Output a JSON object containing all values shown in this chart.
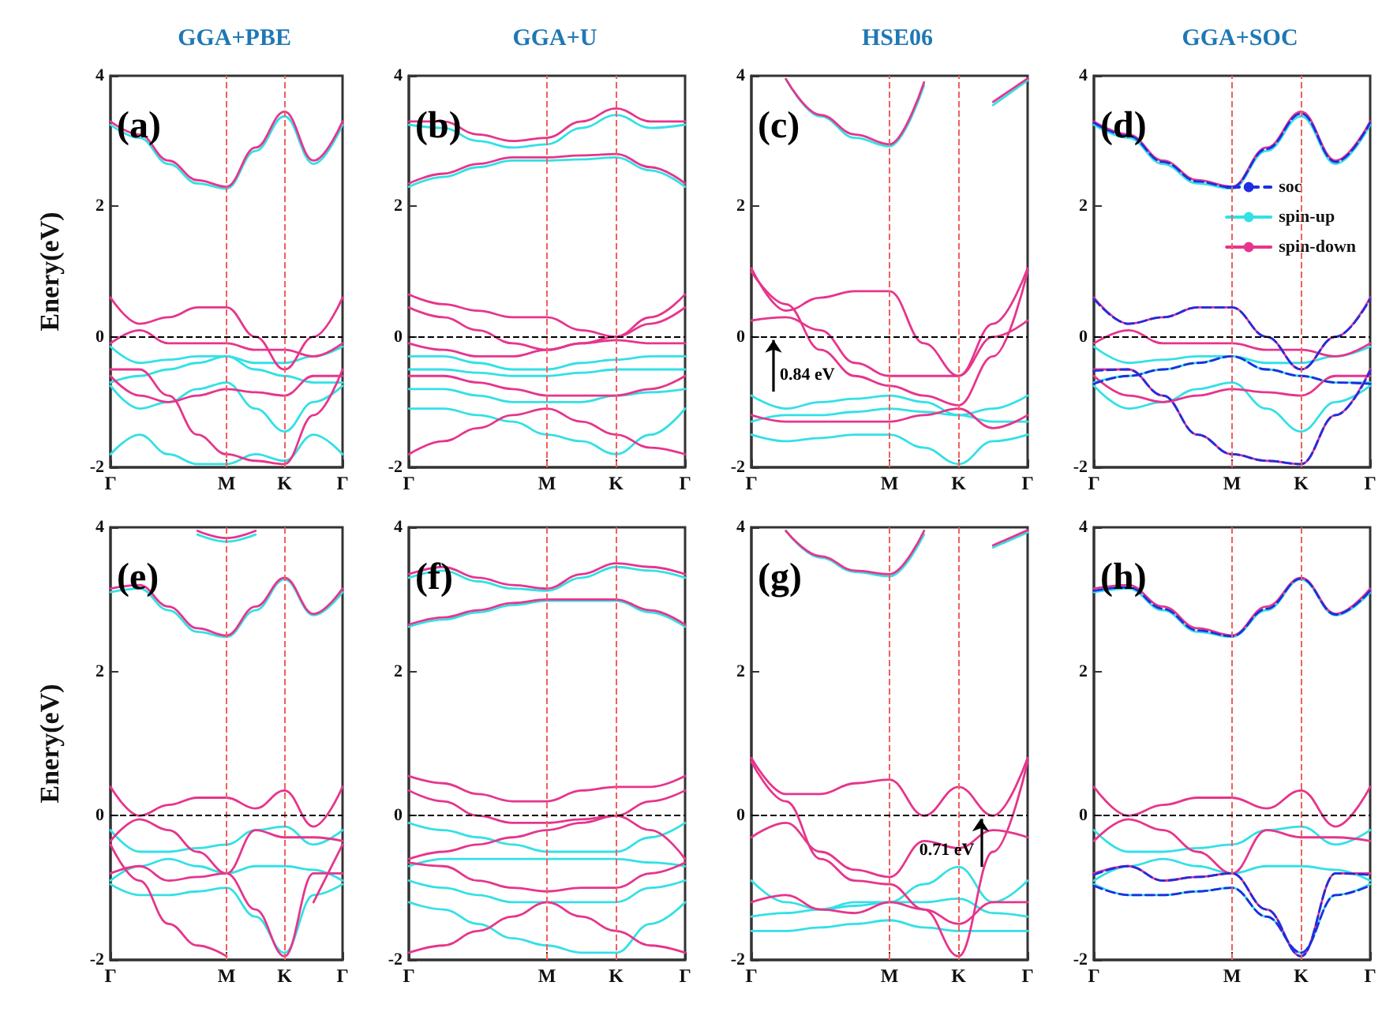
{
  "chart_data": [
    {
      "type": "line",
      "title": "GGA+PBE",
      "ylabel": "Enery(eV)",
      "annotations": [
        "(a)"
      ],
      "categories": [
        "Γ",
        null,
        null,
        null,
        "M",
        null,
        "K",
        null,
        "Γ"
      ],
      "ylim": [
        -2,
        4
      ],
      "yticks": [
        -2,
        0,
        2,
        4
      ],
      "marker": "none",
      "line_style": "solid",
      "ref_lines": [
        {
          "axis": "x",
          "value": "M",
          "color": "#f06060",
          "line_style": "dashed"
        },
        {
          "axis": "x",
          "value": "K",
          "color": "#f06060",
          "line_style": "dashed"
        },
        {
          "axis": "y",
          "value": 0,
          "color": "#000000",
          "line_style": "dashed"
        }
      ],
      "series": [
        {
          "color": "#33e0e6",
          "values": [
            3.25,
            3.05,
            2.65,
            2.35,
            2.27,
            2.85,
            3.38,
            2.65,
            3.25
          ]
        },
        {
          "color": "#33e0e6",
          "values": [
            -0.15,
            -0.4,
            -0.35,
            -0.3,
            -0.3,
            -0.4,
            -0.4,
            -0.3,
            -0.15
          ]
        },
        {
          "color": "#33e0e6",
          "values": [
            -0.7,
            -0.6,
            -0.5,
            -0.4,
            -0.3,
            -0.5,
            -0.6,
            -0.7,
            -0.7
          ]
        },
        {
          "color": "#33e0e6",
          "values": [
            -0.75,
            -1.1,
            -1.0,
            -0.8,
            -0.7,
            -1.1,
            -1.45,
            -1.0,
            -0.75
          ]
        },
        {
          "color": "#33e0e6",
          "values": [
            -1.8,
            -1.5,
            -1.8,
            -1.95,
            -1.95,
            -1.8,
            -1.9,
            -1.5,
            -1.8
          ]
        },
        {
          "color": "#e6358c",
          "values": [
            3.3,
            3.1,
            2.7,
            2.4,
            2.3,
            2.9,
            3.45,
            2.7,
            3.3
          ]
        },
        {
          "color": "#e6358c",
          "values": [
            0.6,
            0.2,
            0.3,
            0.45,
            0.45,
            0,
            -0.5,
            0,
            0.6
          ]
        },
        {
          "color": "#e6358c",
          "values": [
            -0.1,
            0.1,
            -0.1,
            -0.1,
            -0.1,
            -0.2,
            -0.2,
            -0.3,
            -0.1
          ]
        },
        {
          "color": "#e6358c",
          "values": [
            -0.6,
            -0.9,
            -1.0,
            -0.9,
            -0.8,
            -0.85,
            -0.9,
            -0.6,
            -0.6
          ]
        },
        {
          "color": "#e6358c",
          "values": [
            -0.5,
            -0.5,
            -0.9,
            -1.5,
            -1.8,
            -1.9,
            -1.95,
            -1.2,
            -0.5
          ]
        }
      ]
    },
    {
      "type": "line",
      "title": "GGA+U",
      "annotations": [
        "(b)"
      ],
      "categories": [
        "Γ",
        null,
        null,
        null,
        "M",
        null,
        "K",
        null,
        "Γ"
      ],
      "ylim": [
        -2,
        4
      ],
      "yticks": [
        -2,
        0,
        2,
        4
      ],
      "marker": "none",
      "line_style": "solid",
      "ref_lines": [
        {
          "axis": "x",
          "value": "M",
          "color": "#f06060",
          "line_style": "dashed"
        },
        {
          "axis": "x",
          "value": "K",
          "color": "#f06060",
          "line_style": "dashed"
        },
        {
          "axis": "y",
          "value": 0,
          "color": "#000000",
          "line_style": "dashed"
        }
      ],
      "series": [
        {
          "color": "#33e0e6",
          "values": [
            3.25,
            3.2,
            3.0,
            2.9,
            2.95,
            3.2,
            3.4,
            3.2,
            3.25
          ]
        },
        {
          "color": "#33e0e6",
          "values": [
            2.3,
            2.45,
            2.6,
            2.7,
            2.7,
            2.72,
            2.75,
            2.55,
            2.3
          ]
        },
        {
          "color": "#33e0e6",
          "values": [
            -0.3,
            -0.3,
            -0.4,
            -0.5,
            -0.5,
            -0.4,
            -0.35,
            -0.3,
            -0.3
          ]
        },
        {
          "color": "#33e0e6",
          "values": [
            -0.5,
            -0.5,
            -0.55,
            -0.6,
            -0.6,
            -0.55,
            -0.5,
            -0.5,
            -0.5
          ]
        },
        {
          "color": "#33e0e6",
          "values": [
            -0.8,
            -0.8,
            -0.9,
            -1.0,
            -1.0,
            -1.0,
            -0.9,
            -0.85,
            -0.8
          ]
        },
        {
          "color": "#33e0e6",
          "values": [
            -1.1,
            -1.1,
            -1.2,
            -1.3,
            -1.5,
            -1.6,
            -1.8,
            -1.5,
            -1.1
          ]
        },
        {
          "color": "#e6358c",
          "values": [
            3.3,
            3.3,
            3.1,
            3.0,
            3.05,
            3.3,
            3.5,
            3.3,
            3.3
          ]
        },
        {
          "color": "#e6358c",
          "values": [
            2.35,
            2.5,
            2.65,
            2.75,
            2.75,
            2.78,
            2.8,
            2.6,
            2.35
          ]
        },
        {
          "color": "#e6358c",
          "values": [
            0.65,
            0.5,
            0.4,
            0.3,
            0.3,
            0.1,
            0,
            0.3,
            0.65
          ]
        },
        {
          "color": "#e6358c",
          "values": [
            0.45,
            0.3,
            0.1,
            -0.1,
            -0.2,
            -0.1,
            0,
            0.2,
            0.45
          ]
        },
        {
          "color": "#e6358c",
          "values": [
            -0.1,
            -0.2,
            -0.3,
            -0.3,
            -0.2,
            -0.1,
            -0.05,
            -0.1,
            -0.1
          ]
        },
        {
          "color": "#e6358c",
          "values": [
            -0.6,
            -0.6,
            -0.7,
            -0.8,
            -0.9,
            -0.9,
            -0.9,
            -0.8,
            -0.6
          ]
        },
        {
          "color": "#e6358c",
          "values": [
            -1.8,
            -1.6,
            -1.4,
            -1.2,
            -1.1,
            -1.3,
            -1.5,
            -1.7,
            -1.8
          ]
        }
      ]
    },
    {
      "type": "line",
      "title": "HSE06",
      "annotations": [
        "(c)",
        {
          "text": "0.84 eV",
          "x": "Γ",
          "y": -0.84
        }
      ],
      "categories": [
        "Γ",
        null,
        null,
        null,
        "M",
        null,
        "K",
        null,
        "Γ"
      ],
      "ylim": [
        -2,
        4
      ],
      "yticks": [
        -2,
        0,
        2,
        4
      ],
      "marker": "none",
      "line_style": "solid",
      "ref_lines": [
        {
          "axis": "x",
          "value": "M",
          "color": "#f06060",
          "line_style": "dashed"
        },
        {
          "axis": "x",
          "value": "K",
          "color": "#f06060",
          "line_style": "dashed"
        },
        {
          "axis": "y",
          "value": 0,
          "color": "#000000",
          "line_style": "dashed"
        }
      ],
      "series": [
        {
          "color": "#33e0e6",
          "values": [
            null,
            3.95,
            3.38,
            3.05,
            2.92,
            3.85,
            null,
            3.55,
            3.93
          ]
        },
        {
          "color": "#33e0e6",
          "values": [
            -0.9,
            -1.1,
            -1.0,
            -0.95,
            -0.9,
            -1.0,
            -1.2,
            -1.1,
            -0.9
          ]
        },
        {
          "color": "#33e0e6",
          "values": [
            -1.3,
            -1.2,
            -1.2,
            -1.15,
            -1.1,
            -1.15,
            -1.2,
            -1.3,
            -1.3
          ]
        },
        {
          "color": "#33e0e6",
          "values": [
            -1.5,
            -1.6,
            -1.55,
            -1.5,
            -1.5,
            -1.7,
            -1.95,
            -1.6,
            -1.5
          ]
        },
        {
          "color": "#e6358c",
          "values": [
            null,
            3.95,
            3.4,
            3.1,
            2.95,
            3.9,
            null,
            3.6,
            3.96
          ]
        },
        {
          "color": "#e6358c",
          "values": [
            1.05,
            0.4,
            0.6,
            0.7,
            0.7,
            -0.1,
            -0.6,
            0.2,
            1.05
          ]
        },
        {
          "color": "#e6358c",
          "values": [
            0.25,
            0.3,
            0.1,
            -0.4,
            -0.6,
            -0.6,
            -0.6,
            0,
            0.25
          ]
        },
        {
          "color": "#e6358c",
          "values": [
            1.0,
            0.5,
            -0.2,
            -0.6,
            -0.75,
            -0.9,
            -1.05,
            -0.3,
            1.0
          ]
        },
        {
          "color": "#e6358c",
          "values": [
            -1.2,
            -1.3,
            -1.3,
            -1.3,
            -1.3,
            -1.2,
            -1.1,
            -1.4,
            -1.2
          ]
        }
      ]
    },
    {
      "type": "line",
      "title": "GGA+SOC",
      "legend": "right",
      "annotations": [
        "(d)"
      ],
      "categories": [
        "Γ",
        null,
        null,
        null,
        "M",
        null,
        "K",
        null,
        "Γ"
      ],
      "ylim": [
        -2,
        4
      ],
      "yticks": [
        -2,
        0,
        2,
        4
      ],
      "marker": "none",
      "line_style": "solid",
      "ref_lines": [
        {
          "axis": "x",
          "value": "M",
          "color": "#f06060",
          "line_style": "dashed"
        },
        {
          "axis": "x",
          "value": "K",
          "color": "#f06060",
          "line_style": "dashed"
        },
        {
          "axis": "y",
          "value": 0,
          "color": "#000000",
          "line_style": "dashed"
        }
      ],
      "series": [
        {
          "name": "soc",
          "color": "#1f2ee0",
          "line_style": "dashed",
          "values": [
            3.28,
            3.08,
            2.68,
            2.38,
            2.29,
            2.88,
            3.42,
            2.68,
            3.28
          ]
        },
        {
          "name": "spin-up",
          "color": "#33e0e6",
          "values": [
            3.25,
            3.05,
            2.65,
            2.35,
            2.27,
            2.85,
            3.38,
            2.65,
            3.25
          ]
        },
        {
          "color": "#33e0e6",
          "values": [
            -0.15,
            -0.4,
            -0.35,
            -0.3,
            -0.3,
            -0.4,
            -0.4,
            -0.3,
            -0.15
          ]
        },
        {
          "color": "#33e0e6",
          "values": [
            -0.7,
            -0.6,
            -0.5,
            -0.4,
            -0.3,
            -0.5,
            -0.6,
            -0.7,
            -0.7
          ]
        },
        {
          "color": "#33e0e6",
          "values": [
            -0.75,
            -1.1,
            -1.0,
            -0.8,
            -0.7,
            -1.1,
            -1.45,
            -1.0,
            -0.75
          ]
        },
        {
          "name": "spin-down",
          "color": "#e6358c",
          "values": [
            3.3,
            3.1,
            2.7,
            2.4,
            2.3,
            2.9,
            3.45,
            2.7,
            3.3
          ]
        },
        {
          "color": "#e6358c",
          "values": [
            0.6,
            0.2,
            0.3,
            0.45,
            0.45,
            0,
            -0.5,
            0,
            0.6
          ]
        },
        {
          "color": "#e6358c",
          "values": [
            -0.1,
            0.1,
            -0.1,
            -0.1,
            -0.1,
            -0.2,
            -0.2,
            -0.3,
            -0.1
          ]
        },
        {
          "color": "#e6358c",
          "values": [
            -0.6,
            -0.9,
            -1.0,
            -0.9,
            -0.8,
            -0.85,
            -0.9,
            -0.6,
            -0.6
          ]
        },
        {
          "color": "#e6358c",
          "values": [
            -0.5,
            -0.5,
            -0.9,
            -1.5,
            -1.8,
            -1.9,
            -1.95,
            -1.2,
            -0.5
          ]
        },
        {
          "color": "#1f2ee0",
          "line_style": "dashed",
          "values": [
            0.58,
            0.2,
            0.3,
            0.45,
            0.45,
            0,
            -0.5,
            0,
            0.58
          ]
        },
        {
          "color": "#1f2ee0",
          "line_style": "dashed",
          "values": [
            -0.72,
            -0.6,
            -0.5,
            -0.4,
            -0.3,
            -0.5,
            -0.6,
            -0.7,
            -0.72
          ]
        },
        {
          "color": "#1f2ee0",
          "line_style": "dashed",
          "values": [
            -0.52,
            -0.5,
            -0.9,
            -1.5,
            -1.8,
            -1.9,
            -1.95,
            -1.2,
            -0.52
          ]
        }
      ]
    },
    {
      "type": "line",
      "ylabel": "Enery(eV)",
      "annotations": [
        "(e)"
      ],
      "categories": [
        "Γ",
        null,
        null,
        null,
        "M",
        null,
        "K",
        null,
        "Γ"
      ],
      "ylim": [
        -2,
        4
      ],
      "yticks": [
        -2,
        0,
        2,
        4
      ],
      "marker": "none",
      "line_style": "solid",
      "ref_lines": [
        {
          "axis": "x",
          "value": "M",
          "color": "#f06060",
          "line_style": "dashed"
        },
        {
          "axis": "x",
          "value": "K",
          "color": "#f06060",
          "line_style": "dashed"
        },
        {
          "axis": "y",
          "value": 0,
          "color": "#000000",
          "line_style": "dashed"
        }
      ],
      "series": [
        {
          "color": "#33e0e6",
          "values": [
            3.1,
            3.15,
            2.85,
            2.55,
            2.48,
            2.85,
            3.28,
            2.78,
            3.1
          ]
        },
        {
          "color": "#33e0e6",
          "values": [
            null,
            null,
            null,
            3.9,
            3.8,
            3.9,
            null,
            null,
            null
          ]
        },
        {
          "color": "#33e0e6",
          "values": [
            -0.2,
            -0.5,
            -0.5,
            -0.45,
            -0.4,
            -0.2,
            -0.15,
            -0.4,
            -0.2
          ]
        },
        {
          "color": "#33e0e6",
          "values": [
            -0.9,
            -0.7,
            -0.6,
            -0.7,
            -0.8,
            -0.7,
            -0.7,
            -0.75,
            -0.9
          ]
        },
        {
          "color": "#33e0e6",
          "values": [
            -0.95,
            -1.1,
            -1.1,
            -1.05,
            -1.0,
            -1.4,
            -1.9,
            -1.1,
            -0.95
          ]
        },
        {
          "color": "#e6358c",
          "values": [
            3.15,
            3.2,
            2.9,
            2.6,
            2.5,
            2.9,
            3.3,
            2.8,
            3.15
          ]
        },
        {
          "color": "#e6358c",
          "values": [
            null,
            null,
            null,
            3.95,
            3.85,
            3.95,
            null,
            null,
            null
          ]
        },
        {
          "color": "#e6358c",
          "values": [
            0.4,
            0,
            0.15,
            0.25,
            0.25,
            0.1,
            0.35,
            -0.15,
            0.4
          ]
        },
        {
          "color": "#e6358c",
          "values": [
            -0.35,
            -0.05,
            -0.2,
            -0.5,
            -0.8,
            -0.2,
            -0.3,
            -0.3,
            -0.35
          ]
        },
        {
          "color": "#e6358c",
          "values": [
            -0.8,
            -0.7,
            -0.9,
            -0.85,
            -0.8,
            -1.3,
            -1.95,
            -0.8,
            -0.8
          ]
        },
        {
          "color": "#e6358c",
          "values": [
            -0.4,
            -0.9,
            -1.5,
            -1.8,
            -1.95,
            null,
            null,
            -1.2,
            -0.4
          ]
        }
      ]
    },
    {
      "type": "line",
      "annotations": [
        "(f)"
      ],
      "categories": [
        "Γ",
        null,
        null,
        null,
        "M",
        null,
        "K",
        null,
        "Γ"
      ],
      "ylim": [
        -2,
        4
      ],
      "yticks": [
        -2,
        0,
        2,
        4
      ],
      "marker": "none",
      "line_style": "solid",
      "ref_lines": [
        {
          "axis": "x",
          "value": "M",
          "color": "#f06060",
          "line_style": "dashed"
        },
        {
          "axis": "x",
          "value": "K",
          "color": "#f06060",
          "line_style": "dashed"
        },
        {
          "axis": "y",
          "value": 0,
          "color": "#000000",
          "line_style": "dashed"
        }
      ],
      "series": [
        {
          "color": "#33e0e6",
          "values": [
            3.3,
            3.4,
            3.25,
            3.15,
            3.12,
            3.3,
            3.45,
            3.4,
            3.3
          ]
        },
        {
          "color": "#33e0e6",
          "values": [
            2.62,
            2.72,
            2.82,
            2.92,
            2.98,
            2.98,
            2.98,
            2.82,
            2.62
          ]
        },
        {
          "color": "#33e0e6",
          "values": [
            -0.1,
            -0.2,
            -0.3,
            -0.4,
            -0.5,
            -0.5,
            -0.5,
            -0.3,
            -0.1
          ]
        },
        {
          "color": "#33e0e6",
          "values": [
            -0.7,
            -0.6,
            -0.6,
            -0.6,
            -0.6,
            -0.6,
            -0.6,
            -0.65,
            -0.7
          ]
        },
        {
          "color": "#33e0e6",
          "values": [
            -0.9,
            -1.0,
            -1.1,
            -1.2,
            -1.2,
            -1.2,
            -1.2,
            -1.0,
            -0.9
          ]
        },
        {
          "color": "#33e0e6",
          "values": [
            -1.2,
            -1.3,
            -1.5,
            -1.7,
            -1.8,
            -1.9,
            -1.9,
            -1.5,
            -1.2
          ]
        },
        {
          "color": "#e6358c",
          "values": [
            3.35,
            3.45,
            3.3,
            3.2,
            3.15,
            3.35,
            3.5,
            3.45,
            3.35
          ]
        },
        {
          "color": "#e6358c",
          "values": [
            2.65,
            2.75,
            2.85,
            2.95,
            3.0,
            3.0,
            3.0,
            2.85,
            2.65
          ]
        },
        {
          "color": "#e6358c",
          "values": [
            0.55,
            0.45,
            0.3,
            0.2,
            0.2,
            0.35,
            0.4,
            0.4,
            0.55
          ]
        },
        {
          "color": "#e6358c",
          "values": [
            0.35,
            0.2,
            0,
            -0.1,
            -0.1,
            -0.05,
            0,
            0.2,
            0.35
          ]
        },
        {
          "color": "#e6358c",
          "values": [
            -0.6,
            -0.5,
            -0.4,
            -0.3,
            -0.2,
            -0.1,
            0,
            -0.2,
            -0.6
          ]
        },
        {
          "color": "#e6358c",
          "values": [
            -0.65,
            -0.7,
            -0.9,
            -1.0,
            -1.05,
            -1.0,
            -1.0,
            -0.8,
            -0.65
          ]
        },
        {
          "color": "#e6358c",
          "values": [
            -1.9,
            -1.8,
            -1.6,
            -1.4,
            -1.2,
            -1.4,
            -1.6,
            -1.8,
            -1.9
          ]
        }
      ]
    },
    {
      "type": "line",
      "annotations": [
        "(g)",
        {
          "text": "0.71 eV",
          "x": "K",
          "y": -0.71
        }
      ],
      "categories": [
        "Γ",
        null,
        null,
        null,
        "M",
        null,
        "K",
        null,
        "Γ"
      ],
      "ylim": [
        -2,
        4
      ],
      "yticks": [
        -2,
        0,
        2,
        4
      ],
      "marker": "none",
      "line_style": "solid",
      "ref_lines": [
        {
          "axis": "x",
          "value": "M",
          "color": "#f06060",
          "line_style": "dashed"
        },
        {
          "axis": "x",
          "value": "K",
          "color": "#f06060",
          "line_style": "dashed"
        },
        {
          "axis": "y",
          "value": 0,
          "color": "#000000",
          "line_style": "dashed"
        }
      ],
      "series": [
        {
          "color": "#33e0e6",
          "values": [
            null,
            3.95,
            3.58,
            3.38,
            3.32,
            3.9,
            null,
            3.72,
            3.93
          ]
        },
        {
          "color": "#33e0e6",
          "values": [
            -0.9,
            -1.2,
            -1.3,
            -1.2,
            -1.2,
            -0.95,
            -0.71,
            -1.2,
            -0.9
          ]
        },
        {
          "color": "#33e0e6",
          "values": [
            -1.4,
            -1.35,
            -1.3,
            -1.25,
            -1.2,
            -1.2,
            -1.15,
            -1.35,
            -1.4
          ]
        },
        {
          "color": "#33e0e6",
          "values": [
            -1.6,
            -1.6,
            -1.55,
            -1.5,
            -1.45,
            -1.55,
            -1.6,
            -1.6,
            -1.6
          ]
        },
        {
          "color": "#e6358c",
          "values": [
            null,
            3.95,
            3.6,
            3.4,
            3.35,
            3.95,
            null,
            3.75,
            3.96
          ]
        },
        {
          "color": "#e6358c",
          "values": [
            0.8,
            0.3,
            0.3,
            0.45,
            0.5,
            0,
            0.4,
            0,
            0.8
          ]
        },
        {
          "color": "#e6358c",
          "values": [
            -0.3,
            -0.1,
            -0.5,
            -0.75,
            -0.85,
            -0.35,
            -0.45,
            -0.2,
            -0.3
          ]
        },
        {
          "color": "#e6358c",
          "values": [
            0.75,
            0.2,
            -0.6,
            -0.9,
            -0.95,
            -1.3,
            -1.95,
            -0.5,
            0.75
          ]
        },
        {
          "color": "#e6358c",
          "values": [
            -1.2,
            -1.1,
            -1.3,
            -1.35,
            -1.2,
            -1.3,
            -1.5,
            -1.2,
            -1.2
          ]
        }
      ]
    },
    {
      "type": "line",
      "annotations": [
        "(h)"
      ],
      "categories": [
        "Γ",
        null,
        null,
        null,
        "M",
        null,
        "K",
        null,
        "Γ"
      ],
      "ylim": [
        -2,
        4
      ],
      "yticks": [
        -2,
        0,
        2,
        4
      ],
      "marker": "none",
      "line_style": "solid",
      "ref_lines": [
        {
          "axis": "x",
          "value": "M",
          "color": "#f06060",
          "line_style": "dashed"
        },
        {
          "axis": "x",
          "value": "K",
          "color": "#f06060",
          "line_style": "dashed"
        },
        {
          "axis": "y",
          "value": 0,
          "color": "#000000",
          "line_style": "dashed"
        }
      ],
      "series": [
        {
          "color": "#33e0e6",
          "values": [
            3.1,
            3.15,
            2.85,
            2.55,
            2.48,
            2.85,
            3.28,
            2.78,
            3.1
          ]
        },
        {
          "color": "#33e0e6",
          "values": [
            -0.2,
            -0.5,
            -0.5,
            -0.45,
            -0.4,
            -0.2,
            -0.15,
            -0.4,
            -0.2
          ]
        },
        {
          "color": "#33e0e6",
          "values": [
            -0.9,
            -0.7,
            -0.6,
            -0.7,
            -0.8,
            -0.7,
            -0.7,
            -0.75,
            -0.9
          ]
        },
        {
          "color": "#33e0e6",
          "values": [
            -0.95,
            -1.1,
            -1.1,
            -1.05,
            -1.0,
            -1.4,
            -1.9,
            -1.1,
            -0.95
          ]
        },
        {
          "color": "#e6358c",
          "values": [
            3.15,
            3.2,
            2.9,
            2.6,
            2.5,
            2.9,
            3.3,
            2.8,
            3.15
          ]
        },
        {
          "color": "#e6358c",
          "values": [
            0.4,
            0,
            0.15,
            0.25,
            0.25,
            0.1,
            0.35,
            -0.15,
            0.4
          ]
        },
        {
          "color": "#e6358c",
          "values": [
            -0.35,
            -0.05,
            -0.2,
            -0.5,
            -0.8,
            -0.2,
            -0.3,
            -0.3,
            -0.35
          ]
        },
        {
          "color": "#e6358c",
          "values": [
            -0.8,
            -0.7,
            -0.9,
            -0.85,
            -0.8,
            -1.3,
            -1.95,
            -0.8,
            -0.8
          ]
        },
        {
          "color": "#1f2ee0",
          "line_style": "dashed",
          "values": [
            3.12,
            3.17,
            2.87,
            2.57,
            2.49,
            2.87,
            3.29,
            2.79,
            3.12
          ]
        },
        {
          "color": "#1f2ee0",
          "line_style": "dashed",
          "values": [
            -0.82,
            -0.7,
            -0.9,
            -0.85,
            -0.8,
            -1.3,
            -1.95,
            -0.8,
            -0.82
          ]
        },
        {
          "color": "#1f2ee0",
          "line_style": "dashed",
          "values": [
            -0.97,
            -1.1,
            -1.1,
            -1.05,
            -1.0,
            -1.4,
            -1.9,
            -1.1,
            -0.97
          ]
        }
      ]
    }
  ]
}
